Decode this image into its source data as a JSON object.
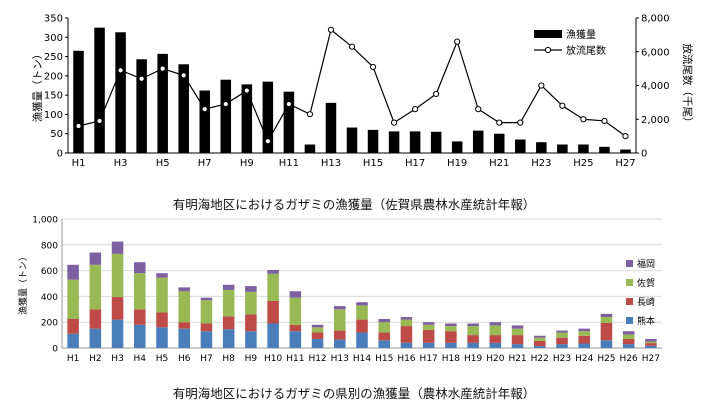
{
  "chart_data": [
    {
      "type": "bar+line",
      "caption": "有明海地区におけるガザミの漁獲量（佐賀県農林水産統計年報）",
      "categories": [
        "H1",
        "H2",
        "H3",
        "H4",
        "H5",
        "H6",
        "H7",
        "H8",
        "H9",
        "H10",
        "H11",
        "H12",
        "H13",
        "H14",
        "H15",
        "H16",
        "H17",
        "H18",
        "H19",
        "H20",
        "H21",
        "H22",
        "H23",
        "H24",
        "H25",
        "H26",
        "H27"
      ],
      "x_tick_labels": [
        "H1",
        "H3",
        "H5",
        "H7",
        "H9",
        "H11",
        "H13",
        "H15",
        "H17",
        "H19",
        "H21",
        "H23",
        "H25",
        "H27"
      ],
      "ylabel_left": "漁獲量（トン）",
      "ylabel_right": "放流尾数（千尾）",
      "ylim_left": [
        0,
        350
      ],
      "yticks_left": [
        "0",
        "50",
        "100",
        "150",
        "200",
        "250",
        "300",
        "350"
      ],
      "ylim_right": [
        0,
        8000
      ],
      "yticks_right": [
        "0",
        "2,000",
        "4,000",
        "6,000",
        "8,000"
      ],
      "legend_position": "top-right",
      "series": [
        {
          "name": "漁獲量",
          "kind": "bar",
          "axis": "left",
          "color": "#000000",
          "values": [
            265,
            325,
            313,
            243,
            257,
            230,
            162,
            190,
            178,
            185,
            159,
            22,
            130,
            66,
            60,
            56,
            56,
            55,
            30,
            58,
            50,
            35,
            28,
            22,
            22,
            16,
            9
          ]
        },
        {
          "name": "放流尾数",
          "kind": "line",
          "axis": "right",
          "color": "#000000",
          "values": [
            1600,
            1900,
            4900,
            4400,
            5000,
            4600,
            2600,
            2900,
            3700,
            700,
            2900,
            2300,
            7300,
            6300,
            5100,
            1800,
            2600,
            3500,
            6600,
            2600,
            1800,
            1800,
            4000,
            2800,
            2000,
            1900,
            1000
          ]
        }
      ]
    },
    {
      "type": "stacked_bar",
      "caption": "有明海地区におけるガザミの県別の漁獲量（農林水産統計年報）",
      "categories": [
        "H1",
        "H2",
        "H3",
        "H4",
        "H5",
        "H6",
        "H7",
        "H8",
        "H9",
        "H10",
        "H11",
        "H12",
        "H13",
        "H14",
        "H15",
        "H16",
        "H17",
        "H18",
        "H19",
        "H20",
        "H21",
        "H22",
        "H23",
        "H24",
        "H25",
        "H26",
        "H27"
      ],
      "ylabel": "漁獲量（トン）",
      "ylim": [
        0,
        1000
      ],
      "yticks": [
        "0",
        "200",
        "400",
        "600",
        "800",
        "1,000"
      ],
      "legend_position": "right",
      "grid": true,
      "series": [
        {
          "name": "熊本",
          "color": "#4a7ebb",
          "values": [
            110,
            150,
            220,
            180,
            160,
            150,
            130,
            145,
            130,
            190,
            130,
            70,
            65,
            120,
            60,
            40,
            40,
            40,
            40,
            40,
            30,
            15,
            30,
            35,
            60,
            30,
            18
          ]
        },
        {
          "name": "長崎",
          "color": "#be4b48",
          "values": [
            115,
            150,
            175,
            120,
            115,
            50,
            60,
            100,
            130,
            175,
            50,
            50,
            70,
            100,
            60,
            130,
            100,
            90,
            60,
            60,
            70,
            40,
            50,
            60,
            135,
            40,
            20
          ]
        },
        {
          "name": "佐賀",
          "color": "#98b954",
          "values": [
            305,
            345,
            335,
            280,
            270,
            240,
            180,
            205,
            175,
            210,
            210,
            40,
            165,
            110,
            80,
            50,
            40,
            40,
            70,
            75,
            50,
            25,
            40,
            35,
            45,
            35,
            12
          ]
        },
        {
          "name": "福岡",
          "color": "#7d60a0",
          "values": [
            115,
            95,
            95,
            85,
            35,
            30,
            20,
            40,
            45,
            30,
            50,
            20,
            25,
            25,
            25,
            20,
            20,
            20,
            20,
            25,
            25,
            15,
            15,
            20,
            25,
            25,
            20
          ]
        }
      ],
      "legend_order": [
        "福岡",
        "佐賀",
        "長崎",
        "熊本"
      ]
    }
  ]
}
